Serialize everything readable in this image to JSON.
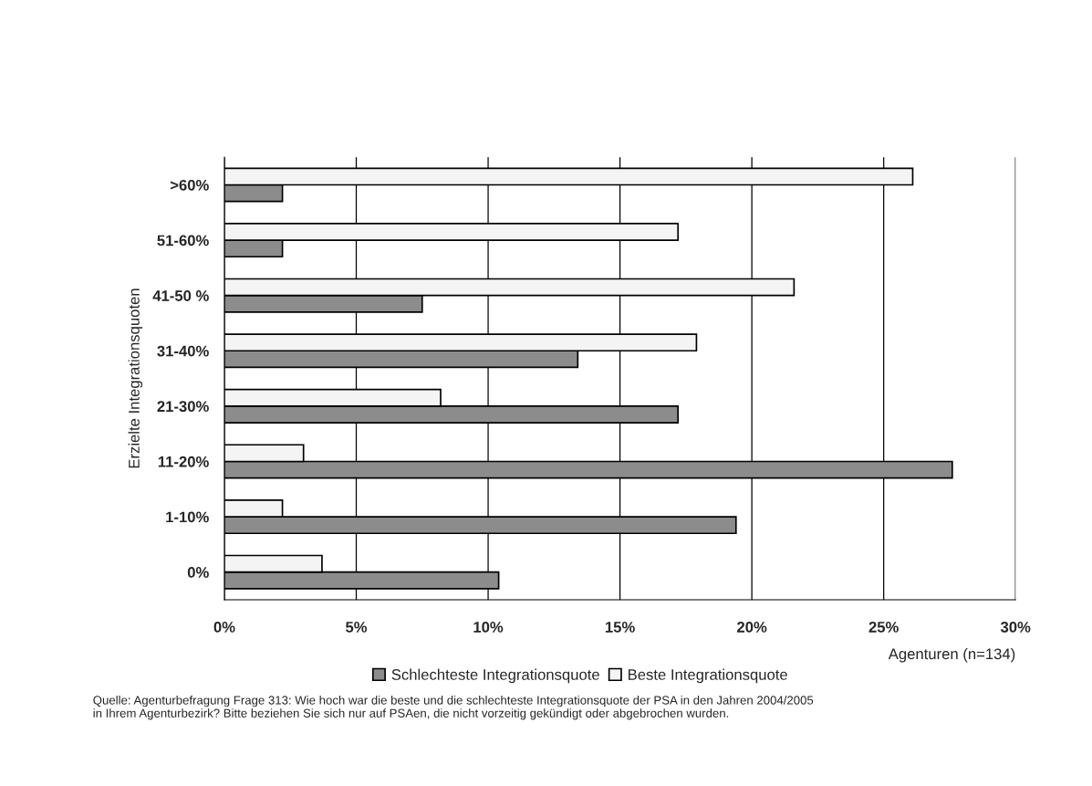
{
  "chart_data": {
    "type": "bar",
    "orientation": "horizontal",
    "ylabel": "Erzielte Integrationsquoten",
    "xlabel": "Agenturen (n=134)",
    "categories": [
      ">60%",
      "51-60%",
      "41-50 %",
      "31-40%",
      "21-30%",
      "11-20%",
      "1-10%",
      "0%"
    ],
    "series": [
      {
        "name": "Schlechteste Integrationsquote",
        "color": "#8c8c8c",
        "values": [
          2.2,
          2.2,
          7.5,
          13.4,
          17.2,
          27.6,
          19.4,
          10.4
        ]
      },
      {
        "name": "Beste Integrationsquote",
        "color": "#f4f4f4",
        "values": [
          26.1,
          17.2,
          21.6,
          17.9,
          8.2,
          3.0,
          2.2,
          3.7
        ]
      }
    ],
    "xlim": [
      0,
      30
    ],
    "xticks": [
      {
        "value": 0,
        "label": "0%"
      },
      {
        "value": 5,
        "label": "5%"
      },
      {
        "value": 10,
        "label": "10%"
      },
      {
        "value": 15,
        "label": "15%"
      },
      {
        "value": 20,
        "label": "20%"
      },
      {
        "value": 25,
        "label": "25%"
      },
      {
        "value": 30,
        "label": "30%"
      }
    ],
    "grid": "x",
    "legend": "bottom",
    "annotations": [
      "Quelle: Agenturbefragung Frage 313: Wie hoch war die beste und die schlechteste Integrationsquote der PSA in den Jahren 2004/2005\nin Ihrem Agenturbezirk? Bitte beziehen Sie sich nur auf PSAen, die nicht vorzeitig gekündigt oder abgebrochen wurden."
    ]
  }
}
